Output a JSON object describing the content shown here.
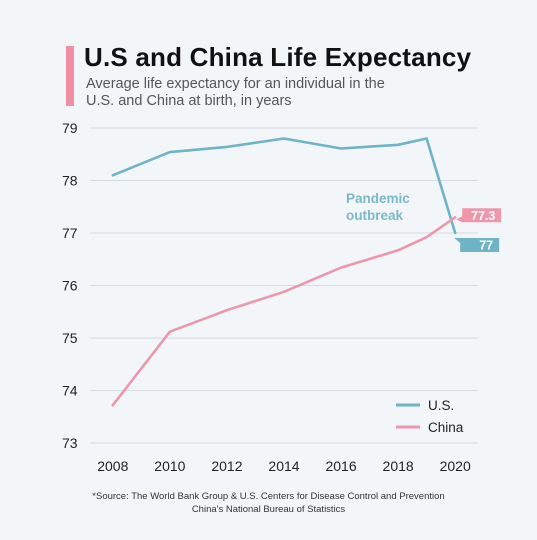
{
  "chart_data": {
    "type": "line",
    "title": "U.S and China Life Expectancy",
    "subtitle": "Average life expectancy for an individual in the U.S. and China at birth, in years",
    "x": [
      2008,
      2009,
      2010,
      2011,
      2012,
      2013,
      2014,
      2015,
      2016,
      2017,
      2018,
      2019,
      2020
    ],
    "x_ticks": [
      "2008",
      "2010",
      "2012",
      "2014",
      "2016",
      "2018",
      "2020"
    ],
    "y_ticks": [
      "79",
      "78",
      "77",
      "76",
      "75",
      "74",
      "73"
    ],
    "ylim": [
      73,
      79
    ],
    "xlim": [
      2007.2,
      2020.8
    ],
    "grid": true,
    "legend_position": "bottom-right",
    "series": [
      {
        "name": "U.S.",
        "color": "#6fb3c6",
        "x": [
          2008,
          2010,
          2012,
          2014,
          2016,
          2018,
          2019,
          2020
        ],
        "values": [
          78.1,
          78.54,
          78.64,
          78.8,
          78.61,
          78.68,
          78.8,
          77.0
        ],
        "end_label": "77"
      },
      {
        "name": "China",
        "color": "#ee97ab",
        "x": [
          2008,
          2010,
          2012,
          2014,
          2016,
          2018,
          2019,
          2020
        ],
        "values": [
          73.72,
          75.12,
          75.53,
          75.88,
          76.34,
          76.67,
          76.92,
          77.3
        ],
        "end_label": "77.3"
      }
    ],
    "annotation": {
      "text_line1": "Pandemic",
      "text_line2": "outbreak",
      "color": "#7ab8c9"
    }
  },
  "source": {
    "line1": "*Source: The World Bank Group & U.S. Centers for Disease Control and Prevention",
    "line2": "China's National Bureau of Statistics"
  }
}
